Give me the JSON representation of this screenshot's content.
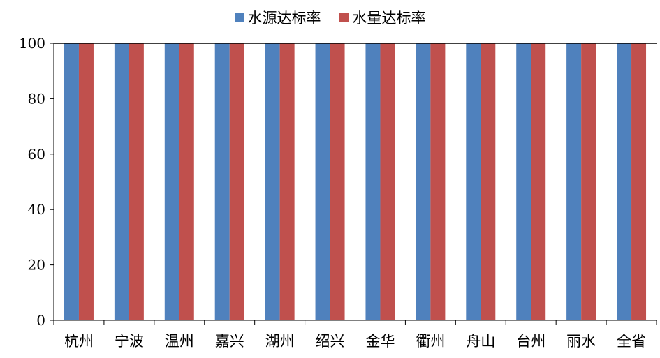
{
  "chart_data": {
    "type": "bar",
    "title": "",
    "xlabel": "",
    "ylabel": "",
    "ylim": [
      0,
      100
    ],
    "yticks": [
      "0",
      "20",
      "40",
      "60",
      "80",
      "100"
    ],
    "grid": false,
    "legend_position": "top",
    "categories": [
      "杭州",
      "宁波",
      "温州",
      "嘉兴",
      "湖州",
      "绍兴",
      "金华",
      "衢州",
      "舟山",
      "台州",
      "丽水",
      "全省"
    ],
    "series": [
      {
        "name": "水源达标率",
        "color": "#4F81BD",
        "values": [
          100,
          100,
          100,
          100,
          100,
          100,
          100,
          100,
          100,
          100,
          100,
          100
        ]
      },
      {
        "name": "水量达标率",
        "color": "#C0504D",
        "values": [
          100,
          100,
          100,
          100,
          100,
          100,
          100,
          100,
          100,
          100,
          100,
          100
        ]
      }
    ]
  }
}
